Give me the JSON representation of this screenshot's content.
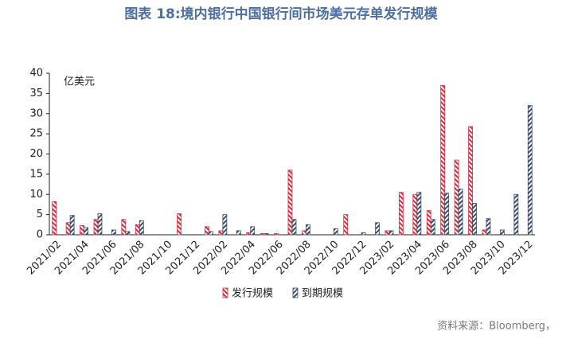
{
  "chart_data": {
    "type": "bar",
    "title": "图表 18:境内银行中国银行间市场美元存单发行规模",
    "unit_label": "亿美元",
    "source": "资料来源：Bloomberg，",
    "categories": [
      "2021/02",
      null,
      "2021/04",
      null,
      "2021/06",
      null,
      "2021/08",
      null,
      "2021/10",
      null,
      "2021/12",
      null,
      "2022/02",
      null,
      "2022/04",
      null,
      "2022/06",
      null,
      "2022/08",
      null,
      "2022/10",
      null,
      "2022/12",
      null,
      "2023/02",
      null,
      "2023/04",
      null,
      "2023/06",
      null,
      "2023/08",
      null,
      "2023/10",
      null,
      "2023/12"
    ],
    "series": [
      {
        "name": "发行规模",
        "color": "#d2303f",
        "values": [
          8.2,
          3,
          2.3,
          3.8,
          0,
          3.8,
          2.5,
          0,
          0,
          5.2,
          0,
          2,
          1,
          0,
          0.5,
          0.3,
          0.3,
          16,
          1,
          0,
          0,
          5,
          0,
          0,
          1,
          10.5,
          10,
          6,
          37,
          18.5,
          26.8,
          1.2,
          0,
          0,
          0
        ]
      },
      {
        "name": "到期规模",
        "color": "#3c4d68",
        "values": [
          0,
          4.8,
          1.8,
          5.2,
          1.2,
          0.8,
          3.5,
          0,
          0,
          0,
          0,
          0.8,
          5,
          1,
          2,
          0.3,
          0,
          3.8,
          2.5,
          0,
          1.5,
          0,
          0.5,
          3,
          1,
          0,
          10.5,
          3.8,
          10.3,
          11.3,
          7.8,
          4,
          1.2,
          10,
          32
        ]
      }
    ],
    "ylim": [
      0,
      40
    ],
    "yticks": [
      0,
      5,
      10,
      15,
      20,
      25,
      30,
      35,
      40
    ],
    "grid": false,
    "legend": "bottom"
  }
}
